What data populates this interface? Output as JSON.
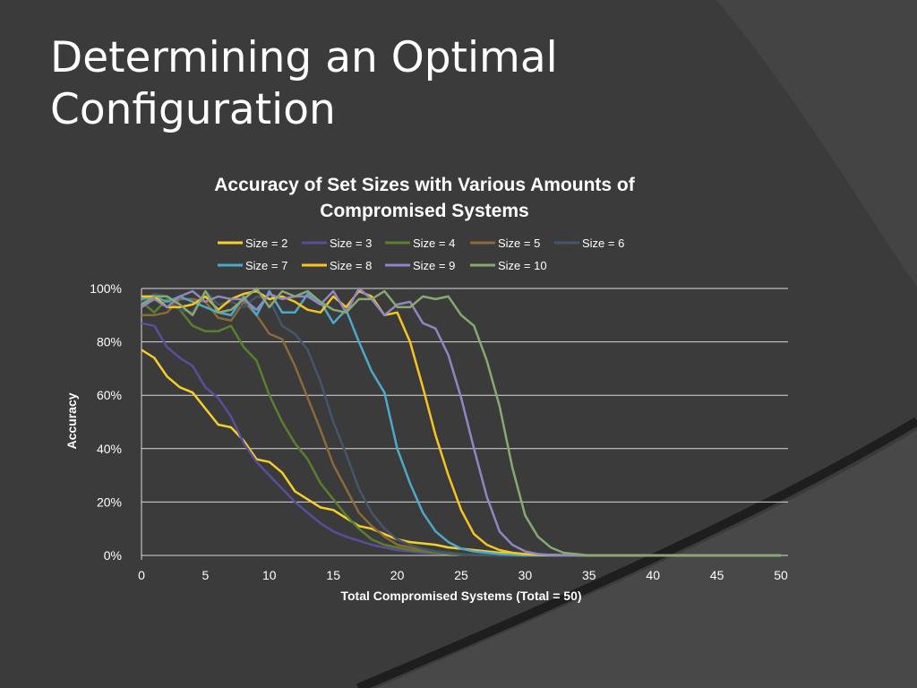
{
  "slide": {
    "title_line1": "Determining an Optimal",
    "title_line2": "Configuration"
  },
  "colors": {
    "background": "#3b3b3b",
    "background_band": "#4a4a4a",
    "gridline": "#d9d9d9"
  },
  "chart_data": {
    "type": "line",
    "title_line1": "Accuracy of Set Sizes with Various Amounts of",
    "title_line2": "Compromised Systems",
    "xlabel": "Total Compromised Systems (Total = 50)",
    "ylabel": "Accuracy",
    "xlim": [
      0,
      50
    ],
    "ylim": [
      0,
      100
    ],
    "x_ticks": [
      0,
      5,
      10,
      15,
      20,
      25,
      30,
      35,
      40,
      45,
      50
    ],
    "y_ticks": [
      0,
      20,
      40,
      60,
      80,
      100
    ],
    "y_tick_labels": [
      "0%",
      "20%",
      "40%",
      "60%",
      "80%",
      "100%"
    ],
    "grid": "horizontal",
    "legend_position": "top",
    "series": [
      {
        "name": "Size = 2",
        "color": "#f4d02a",
        "x": [
          0,
          1,
          2,
          3,
          4,
          5,
          6,
          7,
          8,
          9,
          10,
          11,
          12,
          13,
          14,
          15,
          16,
          17,
          18,
          19,
          20,
          21,
          22,
          23,
          24,
          25,
          26,
          27,
          28,
          29,
          30,
          31,
          32,
          33,
          34,
          35,
          40,
          45,
          50
        ],
        "y": [
          77,
          74,
          67,
          63,
          61,
          55,
          49,
          48,
          43,
          36,
          35,
          31,
          24,
          21,
          18,
          17,
          14,
          11,
          10,
          8,
          6,
          5,
          4.5,
          4,
          3,
          2.5,
          2,
          1.5,
          1,
          0.8,
          0.5,
          0.3,
          0.2,
          0.1,
          0,
          0,
          0,
          0,
          0
        ]
      },
      {
        "name": "Size = 3",
        "color": "#5a4e9a",
        "x": [
          0,
          1,
          2,
          3,
          4,
          5,
          6,
          7,
          8,
          9,
          10,
          11,
          12,
          13,
          14,
          15,
          16,
          17,
          18,
          19,
          20,
          21,
          22,
          23,
          24,
          25,
          26,
          27,
          28,
          29,
          30,
          35,
          40,
          45,
          50
        ],
        "y": [
          87,
          86,
          78,
          74,
          71,
          63,
          59,
          52,
          42,
          35,
          30,
          25,
          20,
          16,
          12,
          9,
          7,
          5.5,
          4,
          3,
          2,
          1.5,
          1,
          0.8,
          0.5,
          0.3,
          0.2,
          0.1,
          0,
          0,
          0,
          0,
          0,
          0,
          0
        ]
      },
      {
        "name": "Size = 4",
        "color": "#5a7f2e",
        "x": [
          0,
          1,
          2,
          3,
          4,
          5,
          6,
          7,
          8,
          9,
          10,
          11,
          12,
          13,
          14,
          15,
          16,
          17,
          18,
          19,
          20,
          21,
          22,
          23,
          24,
          25,
          26,
          27,
          28,
          30,
          35,
          40,
          45,
          50
        ],
        "y": [
          95,
          91,
          96,
          92,
          86,
          84,
          84,
          86,
          78,
          73,
          60,
          50,
          42,
          36,
          27,
          21,
          15,
          10,
          6,
          4,
          3,
          2,
          1.5,
          1,
          0.6,
          0.3,
          0.2,
          0.1,
          0,
          0,
          0,
          0,
          0,
          0
        ]
      },
      {
        "name": "Size = 5",
        "color": "#8a6a3a",
        "x": [
          0,
          1,
          2,
          3,
          4,
          5,
          6,
          7,
          8,
          9,
          10,
          11,
          12,
          13,
          14,
          15,
          16,
          17,
          18,
          19,
          20,
          21,
          22,
          23,
          24,
          25,
          26,
          27,
          28,
          30,
          35,
          40,
          45,
          50
        ],
        "y": [
          90,
          90,
          91,
          96,
          96,
          95,
          89,
          88,
          95,
          90,
          83,
          81,
          71,
          59,
          47,
          34,
          25,
          16,
          11,
          7,
          4,
          3,
          2,
          1.5,
          1,
          0.5,
          0.3,
          0.2,
          0,
          0,
          0,
          0,
          0,
          0
        ]
      },
      {
        "name": "Size = 6",
        "color": "#45566a",
        "x": [
          0,
          1,
          2,
          3,
          4,
          5,
          6,
          7,
          8,
          9,
          10,
          11,
          12,
          13,
          14,
          15,
          16,
          17,
          18,
          19,
          20,
          21,
          22,
          23,
          24,
          25,
          26,
          27,
          28,
          30,
          35,
          40,
          45,
          50
        ],
        "y": [
          95,
          98,
          97,
          92,
          91,
          99,
          94,
          95,
          93,
          97,
          96,
          86,
          83,
          77,
          65,
          50,
          38,
          25,
          16,
          10,
          6,
          4,
          2.5,
          1.5,
          1,
          0.5,
          0.3,
          0.2,
          0,
          0,
          0,
          0,
          0,
          0
        ]
      },
      {
        "name": "Size = 7",
        "color": "#4ea9c8",
        "x": [
          0,
          1,
          2,
          3,
          4,
          5,
          6,
          7,
          8,
          9,
          10,
          11,
          12,
          13,
          14,
          15,
          16,
          17,
          18,
          19,
          20,
          21,
          22,
          23,
          24,
          25,
          26,
          27,
          28,
          29,
          30,
          35,
          40,
          45,
          50
        ],
        "y": [
          96,
          97,
          95,
          97,
          95,
          93,
          91,
          90,
          97,
          90,
          99,
          91,
          91,
          98,
          95,
          87,
          92,
          80,
          69,
          61,
          40,
          27,
          16,
          9,
          5,
          2.5,
          1.5,
          1,
          0.5,
          0.2,
          0,
          0,
          0,
          0,
          0
        ]
      },
      {
        "name": "Size = 8",
        "color": "#f7c520",
        "x": [
          0,
          1,
          2,
          3,
          4,
          5,
          6,
          7,
          8,
          9,
          10,
          11,
          12,
          13,
          14,
          15,
          16,
          17,
          18,
          19,
          20,
          21,
          22,
          23,
          24,
          25,
          26,
          27,
          28,
          29,
          30,
          31,
          35,
          40,
          45,
          50
        ],
        "y": [
          97,
          97,
          93,
          93,
          94,
          97,
          92,
          96,
          98,
          99,
          96,
          97,
          95,
          92,
          91,
          97,
          93,
          99,
          97,
          90,
          91,
          80,
          63,
          45,
          30,
          17,
          8,
          4,
          2,
          1,
          0.5,
          0.2,
          0,
          0,
          0,
          0
        ]
      },
      {
        "name": "Size = 9",
        "color": "#8f86c2",
        "x": [
          0,
          1,
          2,
          3,
          4,
          5,
          6,
          7,
          8,
          9,
          10,
          11,
          12,
          13,
          14,
          15,
          16,
          17,
          18,
          19,
          20,
          21,
          22,
          23,
          24,
          25,
          26,
          27,
          28,
          29,
          30,
          31,
          32,
          35,
          40,
          45,
          50
        ],
        "y": [
          93,
          96,
          93,
          97,
          99,
          95,
          97,
          96,
          96,
          92,
          98,
          96,
          97,
          97,
          94,
          99,
          91,
          100,
          96,
          90,
          94,
          95,
          87,
          85,
          75,
          59,
          40,
          22,
          9,
          4,
          1.5,
          0.5,
          0.2,
          0,
          0,
          0,
          0
        ]
      },
      {
        "name": "Size = 10",
        "color": "#8aa872",
        "x": [
          0,
          1,
          2,
          3,
          4,
          5,
          6,
          7,
          8,
          9,
          10,
          11,
          12,
          13,
          14,
          15,
          16,
          17,
          18,
          19,
          20,
          21,
          22,
          23,
          24,
          25,
          26,
          27,
          28,
          29,
          30,
          31,
          32,
          33,
          34,
          35,
          40,
          45,
          50
        ],
        "y": [
          94,
          97,
          97,
          94,
          90,
          99,
          91,
          92,
          96,
          100,
          93,
          99,
          97,
          99,
          95,
          92,
          91,
          96,
          96,
          99,
          93,
          93,
          97,
          96,
          97,
          90,
          86,
          73,
          56,
          33,
          15,
          7,
          3,
          1,
          0.5,
          0,
          0,
          0,
          0
        ]
      }
    ]
  }
}
